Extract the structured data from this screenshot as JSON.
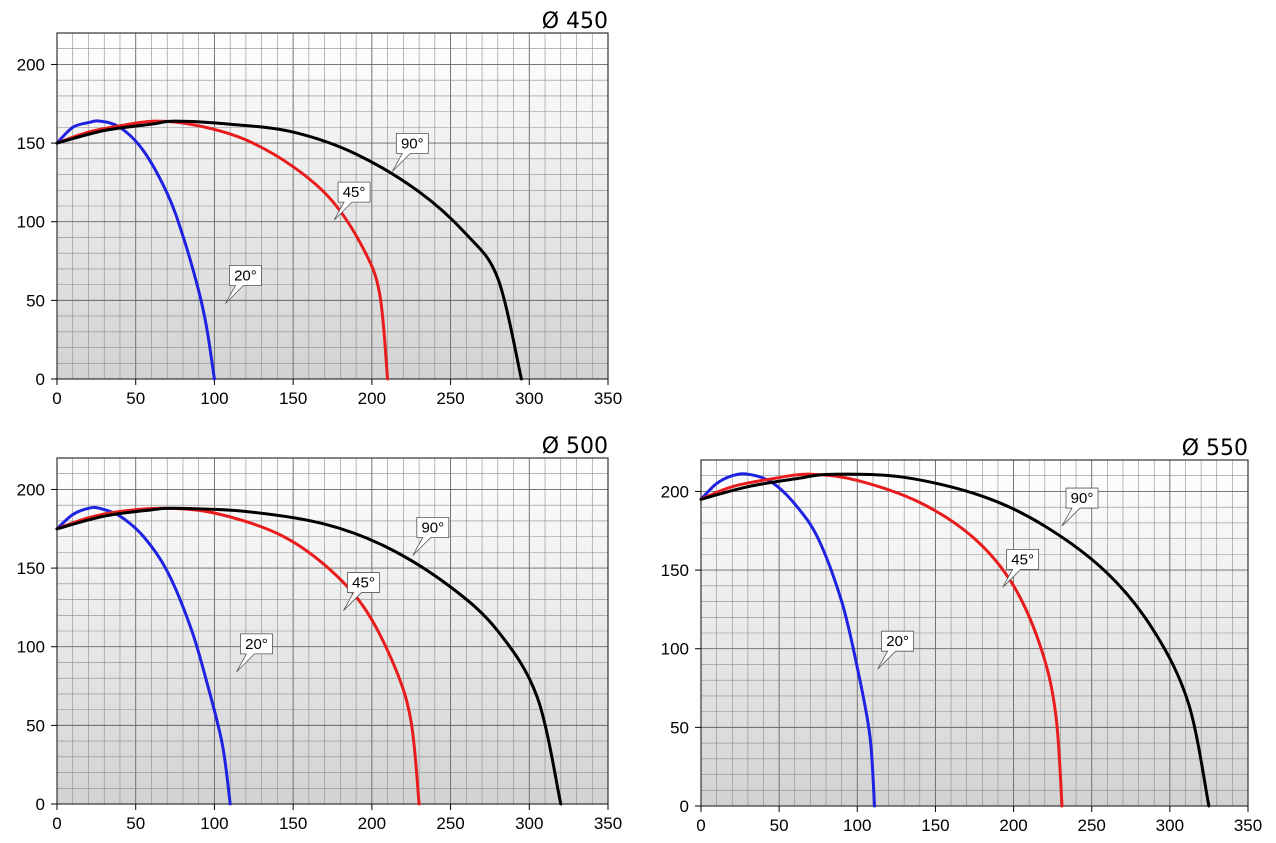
{
  "chart_data": [
    {
      "type": "line",
      "title": "Ø 450",
      "xlim": [
        0,
        350
      ],
      "ylim": [
        0,
        220
      ],
      "xticks": [
        0,
        50,
        100,
        150,
        200,
        250,
        300,
        350
      ],
      "yticks": [
        0,
        50,
        100,
        150,
        200
      ],
      "grid": true,
      "series": [
        {
          "name": "20°",
          "color": "#1f22e0",
          "x": [
            0,
            10,
            20,
            27,
            40,
            55,
            70,
            80,
            90,
            95,
            100
          ],
          "y": [
            150,
            160,
            163,
            164,
            160,
            145,
            118,
            91,
            56,
            33,
            0
          ]
        },
        {
          "name": "45°",
          "color": "#e81c1c",
          "x": [
            0,
            20,
            40,
            63,
            90,
            120,
            150,
            175,
            195,
            205,
            210
          ],
          "y": [
            150,
            157,
            161,
            164,
            161,
            152,
            135,
            113,
            82,
            54,
            0
          ]
        },
        {
          "name": "90°",
          "color": "#000000",
          "x": [
            0,
            30,
            60,
            75,
            110,
            150,
            190,
            230,
            260,
            280,
            295
          ],
          "y": [
            150,
            158,
            162,
            164,
            162,
            157,
            143,
            119,
            92,
            64,
            0
          ]
        }
      ],
      "annotations": [
        {
          "text": "20°",
          "x": 107,
          "y": 48
        },
        {
          "text": "45°",
          "x": 176,
          "y": 101
        },
        {
          "text": "90°",
          "x": 213,
          "y": 132
        }
      ]
    },
    {
      "type": "line",
      "title": "Ø 500",
      "xlim": [
        0,
        350
      ],
      "ylim": [
        0,
        220
      ],
      "xticks": [
        0,
        50,
        100,
        150,
        200,
        250,
        300,
        350
      ],
      "yticks": [
        0,
        50,
        100,
        150,
        200
      ],
      "grid": true,
      "series": [
        {
          "name": "20°",
          "color": "#1f22e0",
          "x": [
            0,
            10,
            20,
            27,
            40,
            55,
            70,
            85,
            95,
            105,
            110
          ],
          "y": [
            175,
            184,
            188,
            188,
            183,
            170,
            148,
            112,
            78,
            38,
            0
          ]
        },
        {
          "name": "45°",
          "color": "#e81c1c",
          "x": [
            0,
            20,
            40,
            68,
            100,
            140,
            170,
            195,
            215,
            225,
            230
          ],
          "y": [
            175,
            182,
            186,
            188,
            185,
            172,
            152,
            125,
            86,
            52,
            0
          ]
        },
        {
          "name": "90°",
          "color": "#000000",
          "x": [
            0,
            30,
            60,
            75,
            120,
            170,
            210,
            250,
            280,
            305,
            320
          ],
          "y": [
            175,
            183,
            187,
            188,
            186,
            178,
            163,
            138,
            110,
            68,
            0
          ]
        }
      ],
      "annotations": [
        {
          "text": "20°",
          "x": 114,
          "y": 84
        },
        {
          "text": "45°",
          "x": 182,
          "y": 123
        },
        {
          "text": "90°",
          "x": 226,
          "y": 158
        }
      ]
    },
    {
      "type": "line",
      "title": "Ø 550",
      "xlim": [
        0,
        350
      ],
      "ylim": [
        0,
        220
      ],
      "xticks": [
        0,
        50,
        100,
        150,
        200,
        250,
        300,
        350
      ],
      "yticks": [
        0,
        50,
        100,
        150,
        200
      ],
      "grid": true,
      "series": [
        {
          "name": "20°",
          "color": "#1f22e0",
          "x": [
            0,
            10,
            20,
            30,
            45,
            60,
            75,
            90,
            100,
            108,
            111
          ],
          "y": [
            195,
            205,
            210,
            211,
            206,
            192,
            170,
            130,
            88,
            45,
            0
          ]
        },
        {
          "name": "45°",
          "color": "#e81c1c",
          "x": [
            0,
            20,
            45,
            70,
            100,
            140,
            175,
            200,
            218,
            227,
            231
          ],
          "y": [
            195,
            203,
            208,
            211,
            207,
            193,
            170,
            140,
            99,
            58,
            0
          ]
        },
        {
          "name": "90°",
          "color": "#000000",
          "x": [
            0,
            30,
            60,
            85,
            130,
            180,
            220,
            260,
            290,
            312,
            325
          ],
          "y": [
            195,
            203,
            208,
            211,
            209,
            197,
            178,
            148,
            111,
            65,
            0
          ]
        }
      ],
      "annotations": [
        {
          "text": "20°",
          "x": 113,
          "y": 87
        },
        {
          "text": "45°",
          "x": 193,
          "y": 139
        },
        {
          "text": "90°",
          "x": 231,
          "y": 178
        }
      ]
    }
  ]
}
